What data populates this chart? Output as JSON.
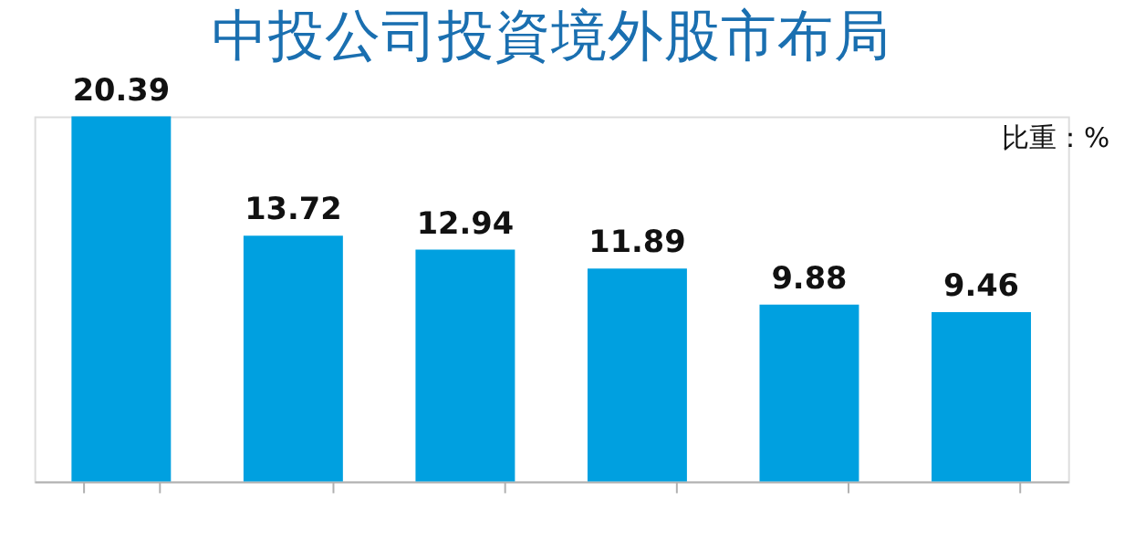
{
  "chart_data": {
    "type": "bar",
    "title": "中投公司投資境外股市布局",
    "annotations": [
      "比重：%"
    ],
    "categories": [
      null,
      null,
      null,
      null,
      null,
      null
    ],
    "values": [
      20.39,
      13.72,
      12.94,
      11.89,
      9.88,
      9.46
    ],
    "color": "#00a0e0",
    "data_labels": true,
    "grid": false
  }
}
